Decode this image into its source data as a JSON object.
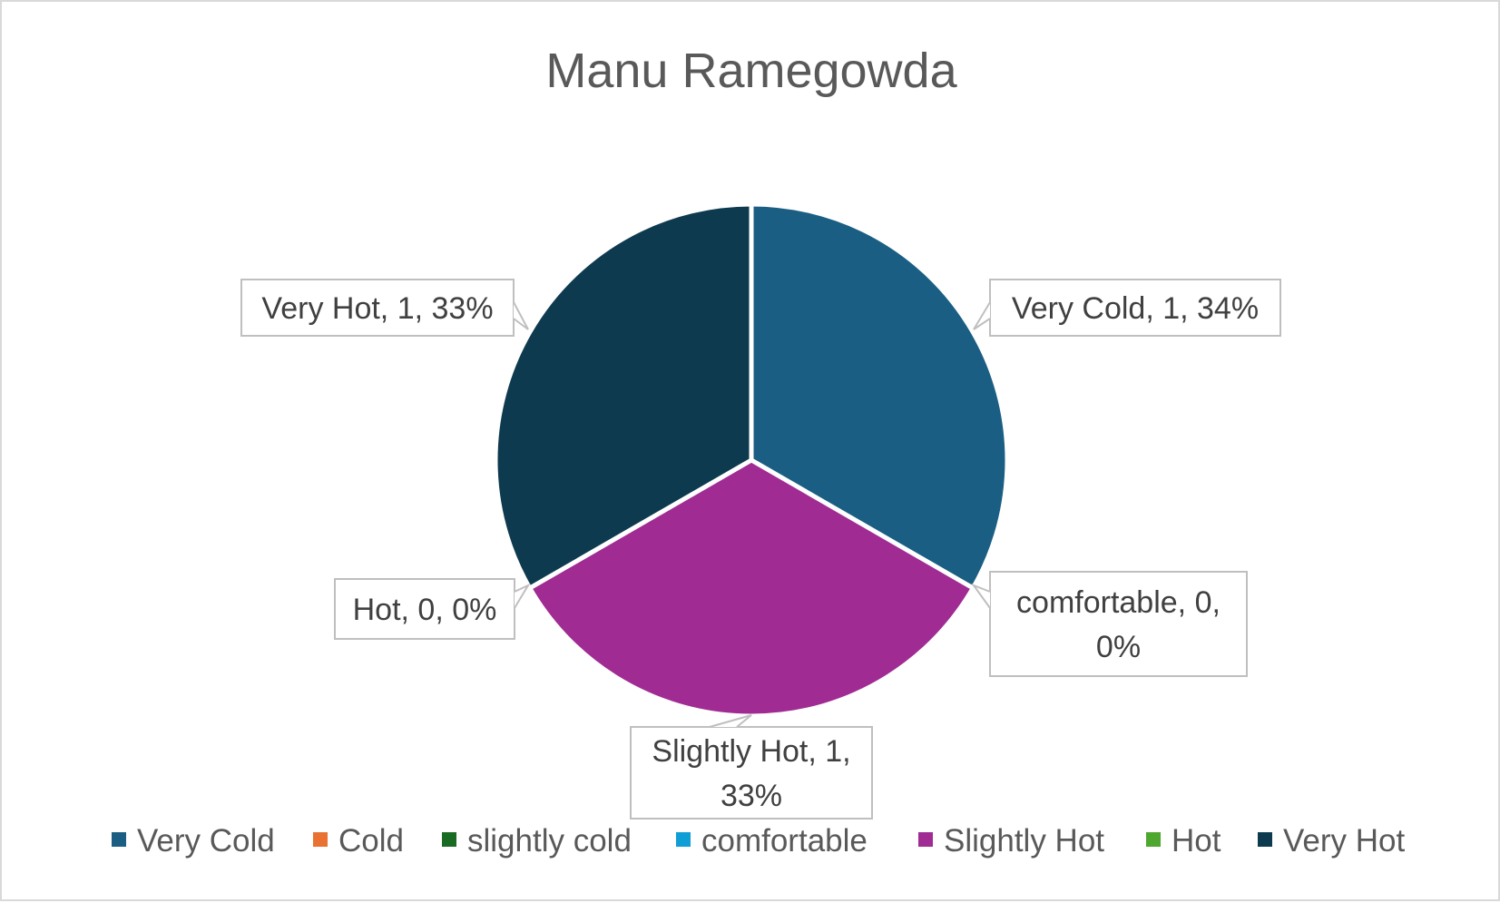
{
  "chart_data": {
    "type": "pie",
    "title": "Manu Ramegowda",
    "categories": [
      "Very Cold",
      "Cold",
      "slightly cold",
      "comfortable",
      "Slightly Hot",
      "Hot",
      "Very Hot"
    ],
    "values": [
      1,
      0,
      0,
      0,
      1,
      0,
      1
    ],
    "percentages": [
      "34%",
      "0%",
      "0%",
      "0%",
      "33%",
      "0%",
      "33%"
    ],
    "colors": [
      "#1b5e83",
      "#e97132",
      "#196b24",
      "#0f9ed5",
      "#a02b93",
      "#4ea72e",
      "#0e3a4f"
    ],
    "data_labels": [
      {
        "category": "Very Cold",
        "lines": [
          "Very Cold, 1, 34%"
        ]
      },
      {
        "category": "comfortable",
        "lines": [
          "comfortable, 0,",
          "0%"
        ]
      },
      {
        "category": "Slightly Hot",
        "lines": [
          "Slightly Hot, 1,",
          "33%"
        ]
      },
      {
        "category": "Hot",
        "lines": [
          "Hot, 0, 0%"
        ]
      },
      {
        "category": "Very Hot",
        "lines": [
          "Very Hot, 1, 33%"
        ]
      }
    ],
    "legend_position": "bottom",
    "start_angle": "top, clockwise"
  }
}
